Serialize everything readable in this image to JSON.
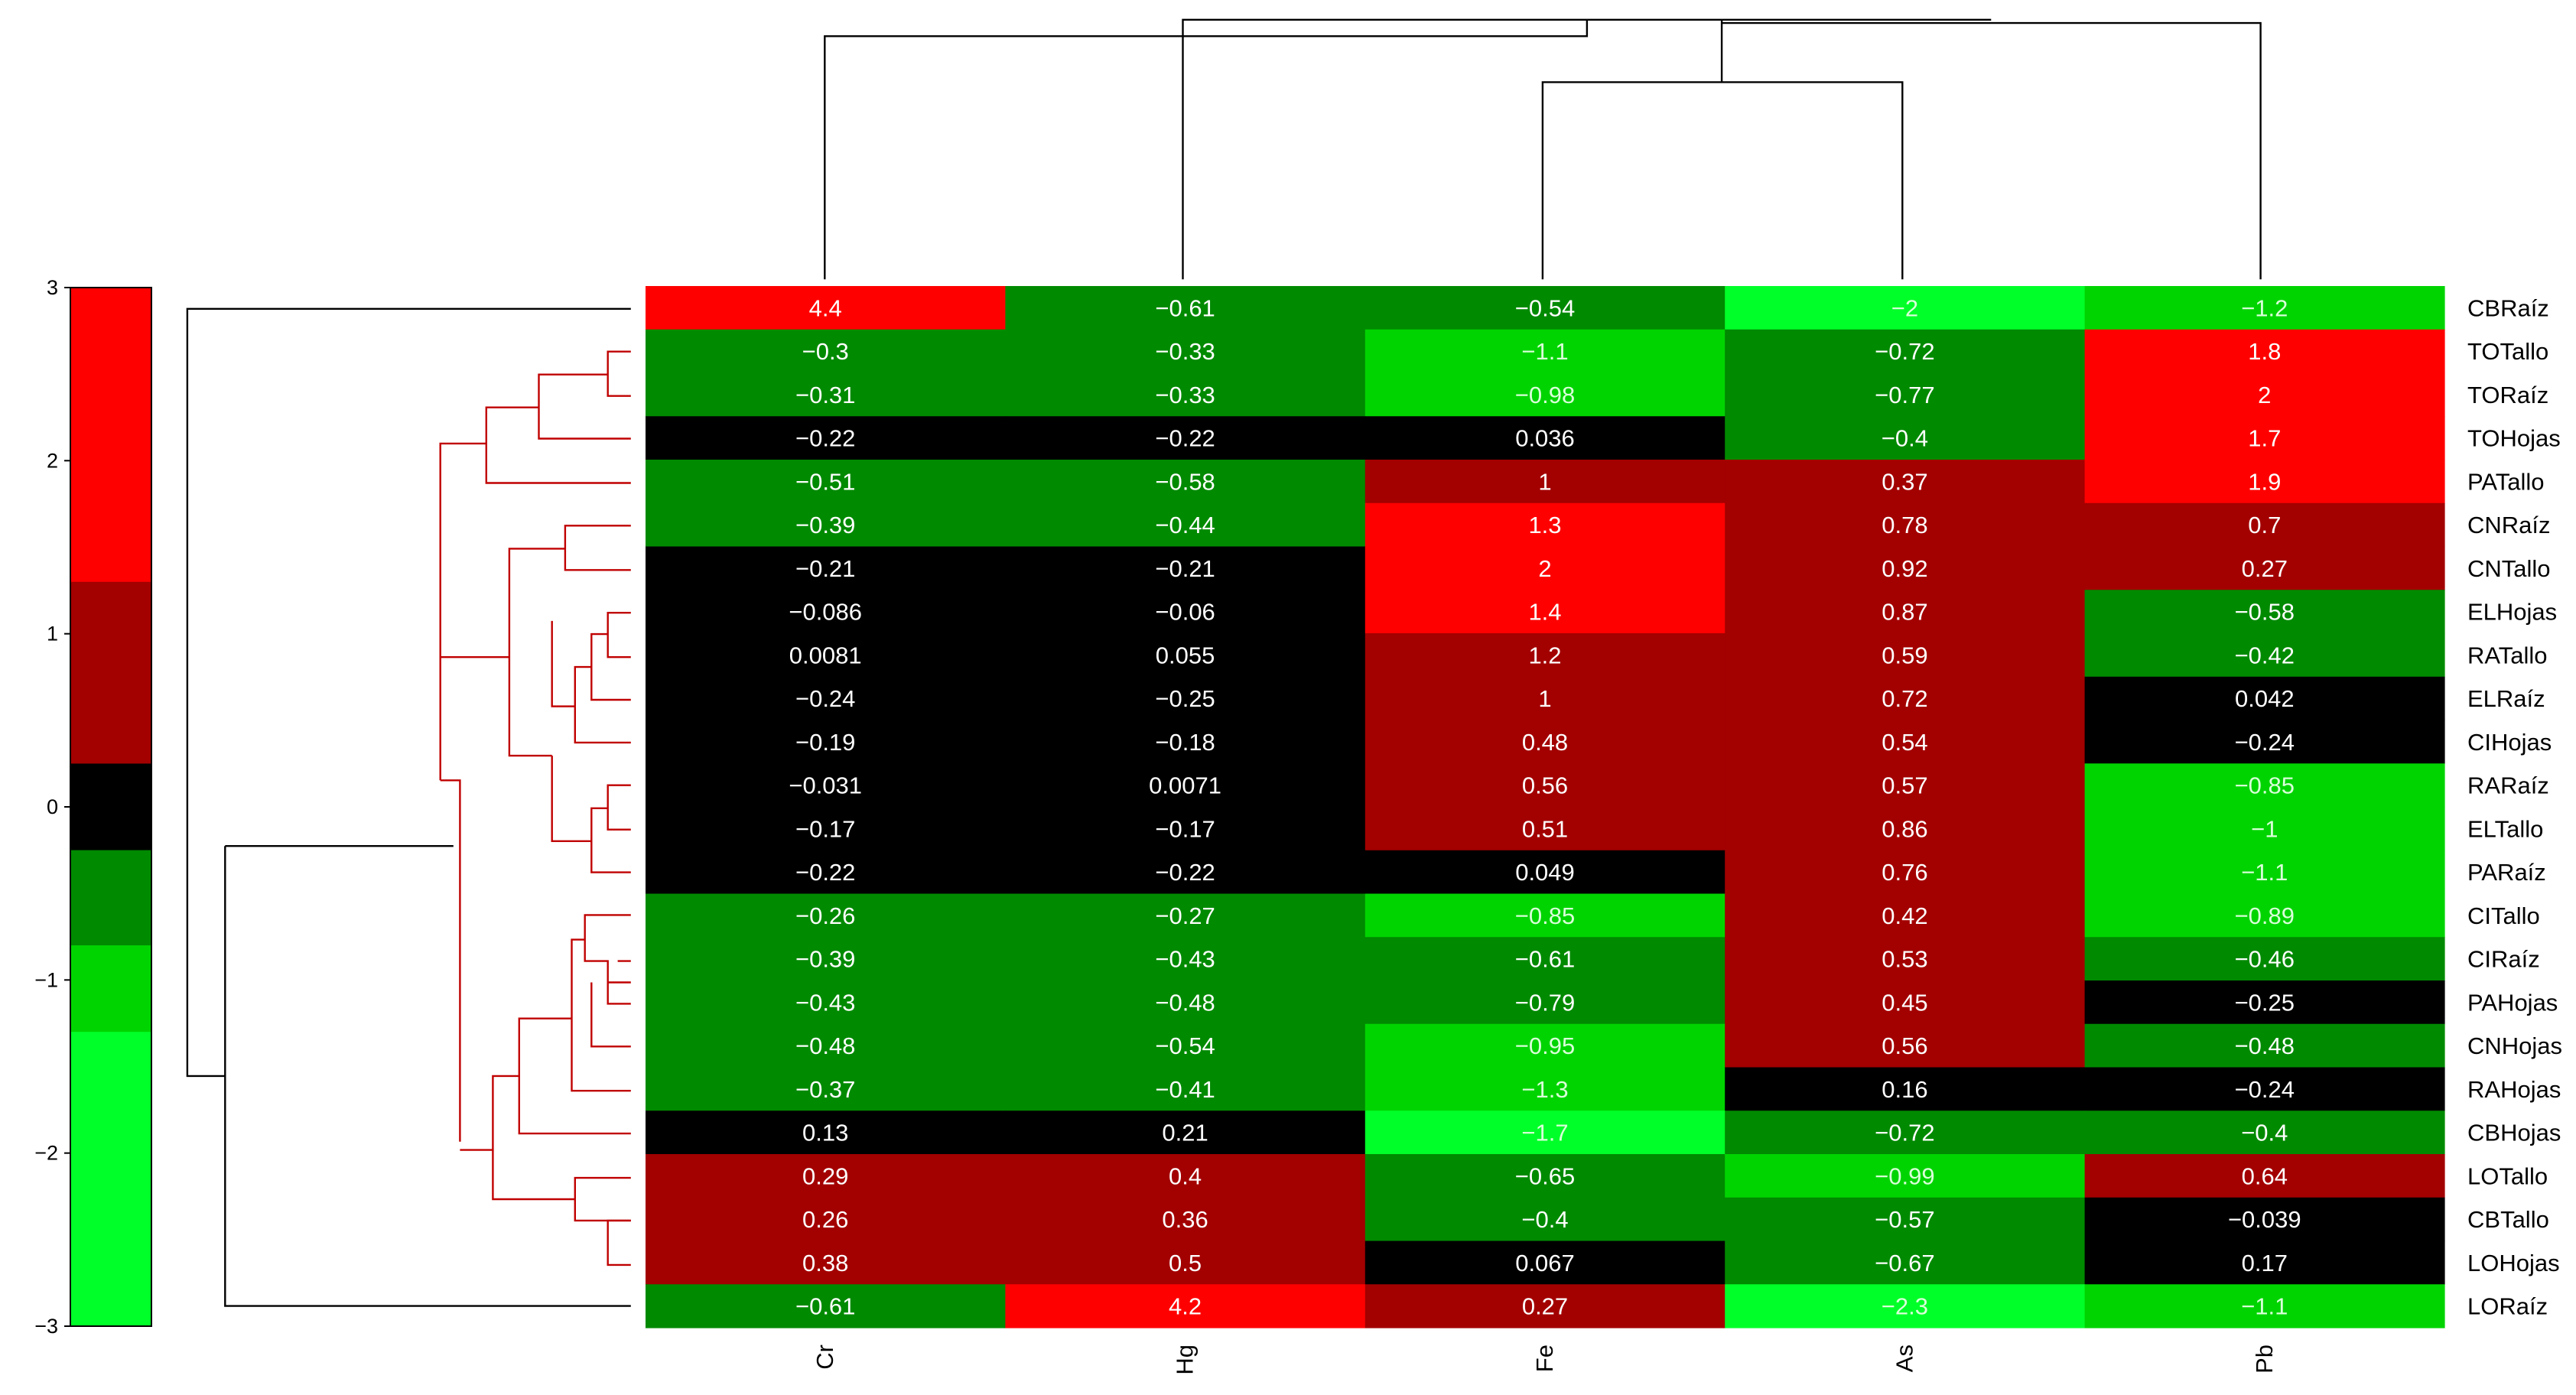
{
  "chart_data": {
    "type": "heatmap",
    "title": "",
    "columns": [
      "Cr",
      "Hg",
      "Fe",
      "As",
      "Pb"
    ],
    "rows": [
      "CBRaíz",
      "TOTallo",
      "TORaíz",
      "TOHojas",
      "PATallo",
      "CNRaíz",
      "CNTallo",
      "ELHojas",
      "RATallo",
      "ELRaíz",
      "CIHojas",
      "RARaíz",
      "ELTallo",
      "PARaíz",
      "CITallo",
      "CIRaíz",
      "PAHojas",
      "CNHojas",
      "RAHojas",
      "CBHojas",
      "LOTallo",
      "CBTallo",
      "LOHojas",
      "LORaíz"
    ],
    "values": [
      [
        "4.4",
        "−0.61",
        "−0.54",
        "−2",
        "−1.2"
      ],
      [
        "−0.3",
        "−0.33",
        "−1.1",
        "−0.72",
        "1.8"
      ],
      [
        "−0.31",
        "−0.33",
        "−0.98",
        "−0.77",
        "2"
      ],
      [
        "−0.22",
        "−0.22",
        "0.036",
        "−0.4",
        "1.7"
      ],
      [
        "−0.51",
        "−0.58",
        "1",
        "0.37",
        "1.9"
      ],
      [
        "−0.39",
        "−0.44",
        "1.3",
        "0.78",
        "0.7"
      ],
      [
        "−0.21",
        "−0.21",
        "2",
        "0.92",
        "0.27"
      ],
      [
        "−0.086",
        "−0.06",
        "1.4",
        "0.87",
        "−0.58"
      ],
      [
        "0.0081",
        "0.055",
        "1.2",
        "0.59",
        "−0.42"
      ],
      [
        "−0.24",
        "−0.25",
        "1",
        "0.72",
        "0.042"
      ],
      [
        "−0.19",
        "−0.18",
        "0.48",
        "0.54",
        "−0.24"
      ],
      [
        "−0.031",
        "0.0071",
        "0.56",
        "0.57",
        "−0.85"
      ],
      [
        "−0.17",
        "−0.17",
        "0.51",
        "0.86",
        "−1"
      ],
      [
        "−0.22",
        "−0.22",
        "0.049",
        "0.76",
        "−1.1"
      ],
      [
        "−0.26",
        "−0.27",
        "−0.85",
        "0.42",
        "−0.89"
      ],
      [
        "−0.39",
        "−0.43",
        "−0.61",
        "0.53",
        "−0.46"
      ],
      [
        "−0.43",
        "−0.48",
        "−0.79",
        "0.45",
        "−0.25"
      ],
      [
        "−0.48",
        "−0.54",
        "−0.95",
        "0.56",
        "−0.48"
      ],
      [
        "−0.37",
        "−0.41",
        "−1.3",
        "0.16",
        "−0.24"
      ],
      [
        "0.13",
        "0.21",
        "−1.7",
        "−0.72",
        "−0.4"
      ],
      [
        "0.29",
        "0.4",
        "−0.65",
        "−0.99",
        "0.64"
      ],
      [
        "0.26",
        "0.36",
        "−0.4",
        "−0.57",
        "−0.039"
      ],
      [
        "0.38",
        "0.5",
        "0.067",
        "−0.67",
        "0.17"
      ],
      [
        "−0.61",
        "4.2",
        "0.27",
        "−2.3",
        "−1.1"
      ]
    ],
    "color_scale": {
      "range": [
        -3,
        3
      ],
      "ticks": [
        "3",
        "2",
        "1",
        "0",
        "−1",
        "−2",
        "−3"
      ],
      "bands": [
        {
          "from": 1.3,
          "to": 3,
          "color": "#ff0000"
        },
        {
          "from": 0.25,
          "to": 1.3,
          "color": "#a30000"
        },
        {
          "from": -0.25,
          "to": 0.25,
          "color": "#000000"
        },
        {
          "from": -0.8,
          "to": -0.25,
          "color": "#008a00"
        },
        {
          "from": -1.3,
          "to": -0.8,
          "color": "#00d400"
        },
        {
          "from": -3,
          "to": -1.3,
          "color": "#00ff28"
        }
      ]
    },
    "text_colors": {
      "default": "#ffffff",
      "on_bright_green": "#d9ffd9"
    },
    "dendrogram_colors": {
      "clusters": "#000000",
      "subtree": "#c00000"
    }
  }
}
